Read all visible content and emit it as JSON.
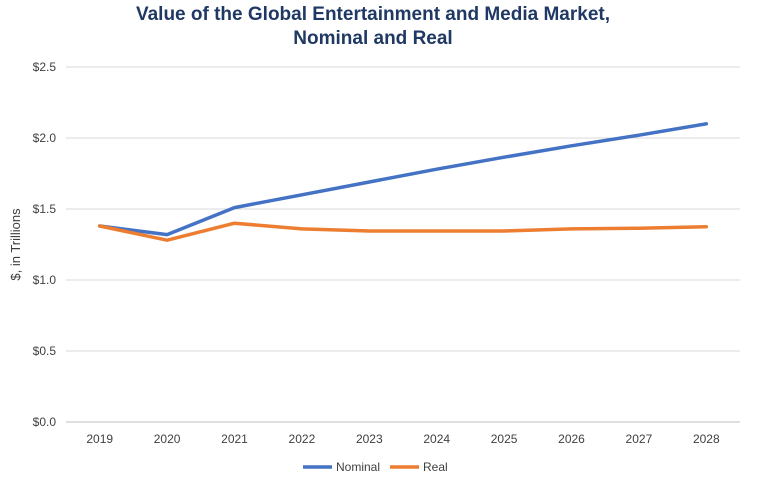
{
  "chart_data": {
    "type": "line",
    "title": [
      "Value of the Global Entertainment and Media Market,",
      "Nominal and Real"
    ],
    "xlabel": "",
    "ylabel": "$, in Trillions",
    "categories": [
      "2019",
      "2020",
      "2021",
      "2022",
      "2023",
      "2024",
      "2025",
      "2026",
      "2027",
      "2028"
    ],
    "ylim": [
      0,
      2.5
    ],
    "yticks": [
      0,
      0.5,
      1.0,
      1.5,
      2.0,
      2.5
    ],
    "ytick_labels": [
      "$0.0",
      "$0.5",
      "$1.0",
      "$1.5",
      "$2.0",
      "$2.5"
    ],
    "grid": true,
    "legend_position": "bottom-center",
    "series": [
      {
        "name": "Nominal",
        "color": "#4472C4",
        "values": [
          1.38,
          1.32,
          1.51,
          1.6,
          1.69,
          1.78,
          1.865,
          1.945,
          2.02,
          2.1
        ]
      },
      {
        "name": "Real",
        "color": "#ED7D31",
        "values": [
          1.38,
          1.28,
          1.4,
          1.36,
          1.345,
          1.345,
          1.345,
          1.36,
          1.365,
          1.375
        ]
      }
    ],
    "colors": {
      "title": "#1F3864",
      "grid": "#D9D9D9",
      "axis": "#BFBFBF"
    }
  }
}
